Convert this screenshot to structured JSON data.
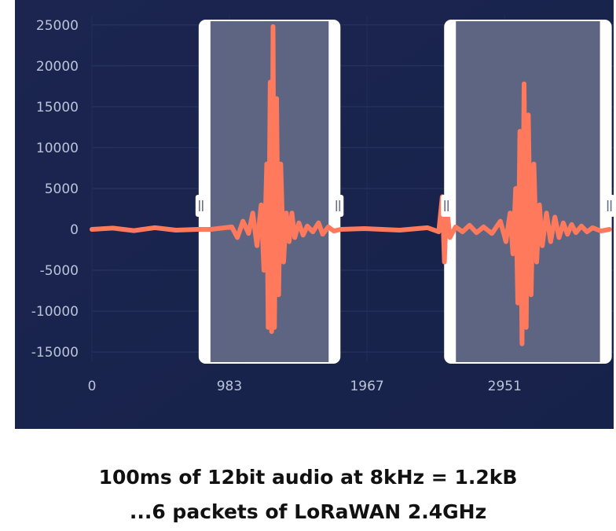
{
  "chart_data": {
    "type": "line",
    "xlabel": "",
    "ylabel": "",
    "y_ticks": [
      "25000",
      "20000",
      "15000",
      "10000",
      "5000",
      "0",
      "-5000",
      "-10000",
      "-15000"
    ],
    "y_tick_values": [
      25000,
      20000,
      15000,
      10000,
      5000,
      0,
      -5000,
      -10000,
      -15000
    ],
    "x_ticks": [
      "0",
      "983",
      "1967",
      "2951"
    ],
    "x_tick_values": [
      0,
      983,
      1967,
      2951
    ],
    "xlim": [
      0,
      3720
    ],
    "ylim": [
      -16000,
      25500
    ],
    "grid": true,
    "series": [
      {
        "color": "#ff7a5c",
        "points": [
          [
            0,
            0
          ],
          [
            150,
            150
          ],
          [
            300,
            -150
          ],
          [
            450,
            200
          ],
          [
            600,
            -100
          ],
          [
            760,
            0
          ],
          [
            850,
            0
          ],
          [
            1000,
            300
          ],
          [
            1040,
            -1000
          ],
          [
            1080,
            1000
          ],
          [
            1120,
            -500
          ],
          [
            1150,
            2000
          ],
          [
            1180,
            -2000
          ],
          [
            1210,
            3000
          ],
          [
            1230,
            -5000
          ],
          [
            1250,
            8000
          ],
          [
            1260,
            -12000
          ],
          [
            1275,
            18000
          ],
          [
            1285,
            -12500
          ],
          [
            1295,
            24800
          ],
          [
            1305,
            -12000
          ],
          [
            1320,
            16000
          ],
          [
            1335,
            -8000
          ],
          [
            1350,
            8000
          ],
          [
            1370,
            -4000
          ],
          [
            1390,
            2000
          ],
          [
            1410,
            -1500
          ],
          [
            1430,
            2000
          ],
          [
            1450,
            -1000
          ],
          [
            1480,
            800
          ],
          [
            1510,
            -700
          ],
          [
            1540,
            400
          ],
          [
            1580,
            -300
          ],
          [
            1620,
            800
          ],
          [
            1650,
            -600
          ],
          [
            1690,
            300
          ],
          [
            1730,
            -200
          ],
          [
            1780,
            0
          ],
          [
            1950,
            100
          ],
          [
            2200,
            -100
          ],
          [
            2400,
            200
          ],
          [
            2480,
            -300
          ],
          [
            2505,
            4000
          ],
          [
            2520,
            -4000
          ],
          [
            2535,
            3000
          ],
          [
            2560,
            -1000
          ],
          [
            2600,
            300
          ],
          [
            2650,
            -300
          ],
          [
            2700,
            500
          ],
          [
            2750,
            -400
          ],
          [
            2800,
            300
          ],
          [
            2860,
            -500
          ],
          [
            2920,
            1000
          ],
          [
            2960,
            -1500
          ],
          [
            2990,
            2000
          ],
          [
            3010,
            -3000
          ],
          [
            3030,
            5000
          ],
          [
            3045,
            -9000
          ],
          [
            3060,
            12000
          ],
          [
            3075,
            -14000
          ],
          [
            3090,
            17800
          ],
          [
            3105,
            -12000
          ],
          [
            3120,
            14000
          ],
          [
            3140,
            -8000
          ],
          [
            3160,
            8000
          ],
          [
            3180,
            -4000
          ],
          [
            3200,
            3000
          ],
          [
            3220,
            -2000
          ],
          [
            3250,
            2000
          ],
          [
            3280,
            -1500
          ],
          [
            3310,
            1500
          ],
          [
            3340,
            -1000
          ],
          [
            3370,
            800
          ],
          [
            3400,
            -600
          ],
          [
            3430,
            600
          ],
          [
            3460,
            -400
          ],
          [
            3500,
            400
          ],
          [
            3540,
            -300
          ],
          [
            3580,
            200
          ],
          [
            3640,
            -200
          ],
          [
            3700,
            0
          ]
        ]
      }
    ],
    "highlight_windows": [
      {
        "x_start": 780,
        "x_end": 1760
      },
      {
        "x_start": 2535,
        "x_end": 3700
      }
    ]
  },
  "captions": {
    "line1": "100ms of 12bit audio at 8kHz = 1.2kB",
    "line2": "...6 packets of LoRaWAN 2.4GHz"
  }
}
